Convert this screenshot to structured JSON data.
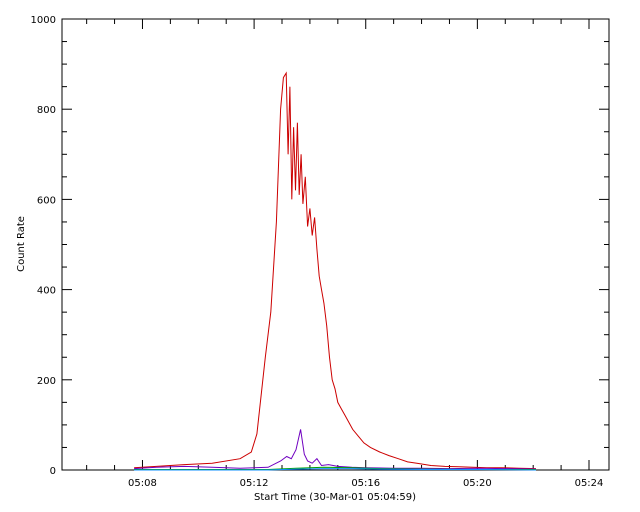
{
  "chart_data": {
    "type": "line",
    "xlabel": "Start Time (30-Mar-01 05:04:59)",
    "ylabel": "Count Rate",
    "xlim": [
      "05:05:07",
      "05:24:43"
    ],
    "ylim": [
      0,
      1000
    ],
    "x_ticks": [
      "05:08",
      "05:12",
      "05:16",
      "05:20",
      "05:24"
    ],
    "y_ticks": [
      0,
      200,
      400,
      600,
      800,
      1000
    ],
    "grid": false,
    "legend": "none",
    "series": [
      {
        "color": "#cc0000",
        "x": [
          "05:07:42",
          "05:08:30",
          "05:09:30",
          "05:10:30",
          "05:11:30",
          "05:11:54",
          "05:12:06",
          "05:12:24",
          "05:12:36",
          "05:12:48",
          "05:12:57",
          "05:13:03",
          "05:13:09",
          "05:13:13",
          "05:13:17",
          "05:13:21",
          "05:13:25",
          "05:13:29",
          "05:13:33",
          "05:13:37",
          "05:13:41",
          "05:13:45",
          "05:13:50",
          "05:13:55",
          "05:14:00",
          "05:14:05",
          "05:14:10",
          "05:14:15",
          "05:14:20",
          "05:14:25",
          "05:14:30",
          "05:14:36",
          "05:14:42",
          "05:14:48",
          "05:14:54",
          "05:15:00",
          "05:15:08",
          "05:15:16",
          "05:15:24",
          "05:15:32",
          "05:15:44",
          "05:15:56",
          "05:16:10",
          "05:16:30",
          "05:16:50",
          "05:17:10",
          "05:17:30",
          "05:17:50",
          "05:18:20",
          "05:18:50",
          "05:19:20",
          "05:19:50",
          "05:20:20",
          "05:20:50",
          "05:21:30",
          "05:22:06"
        ],
        "y": [
          5,
          8,
          12,
          15,
          25,
          40,
          80,
          250,
          350,
          550,
          800,
          870,
          880,
          700,
          850,
          600,
          760,
          620,
          770,
          610,
          700,
          590,
          650,
          540,
          580,
          520,
          560,
          490,
          430,
          400,
          370,
          320,
          250,
          200,
          180,
          150,
          135,
          120,
          105,
          90,
          75,
          60,
          50,
          40,
          32,
          25,
          18,
          15,
          10,
          8,
          7,
          6,
          5,
          5,
          4,
          3
        ]
      },
      {
        "color": "#7000c0",
        "x": [
          "05:07:42",
          "05:08:30",
          "05:09:30",
          "05:10:30",
          "05:11:30",
          "05:12:30",
          "05:12:57",
          "05:13:10",
          "05:13:20",
          "05:13:30",
          "05:13:40",
          "05:13:48",
          "05:13:55",
          "05:14:05",
          "05:14:15",
          "05:14:25",
          "05:14:40",
          "05:15:00",
          "05:15:30",
          "05:16:00",
          "05:17:00",
          "05:18:00",
          "05:19:00",
          "05:20:00",
          "05:21:00",
          "05:22:06"
        ],
        "y": [
          3,
          6,
          8,
          6,
          4,
          6,
          20,
          30,
          25,
          45,
          90,
          35,
          20,
          15,
          25,
          10,
          12,
          8,
          6,
          5,
          4,
          4,
          3,
          4,
          3,
          2
        ]
      },
      {
        "color": "#00a000",
        "x": [
          "05:07:42",
          "05:12:30",
          "05:13:30",
          "05:14:30",
          "05:15:30",
          "05:16:30",
          "05:18:00",
          "05:20:00",
          "05:22:06"
        ],
        "y": [
          1,
          1,
          4,
          6,
          5,
          3,
          2,
          1,
          1
        ]
      },
      {
        "color": "#1090ff",
        "x": [
          "05:07:42",
          "05:12:30",
          "05:13:30",
          "05:14:30",
          "05:15:30",
          "05:16:30",
          "05:18:00",
          "05:20:00",
          "05:22:06"
        ],
        "y": [
          0,
          0,
          2,
          3,
          3,
          2,
          1,
          1,
          0
        ]
      }
    ]
  }
}
